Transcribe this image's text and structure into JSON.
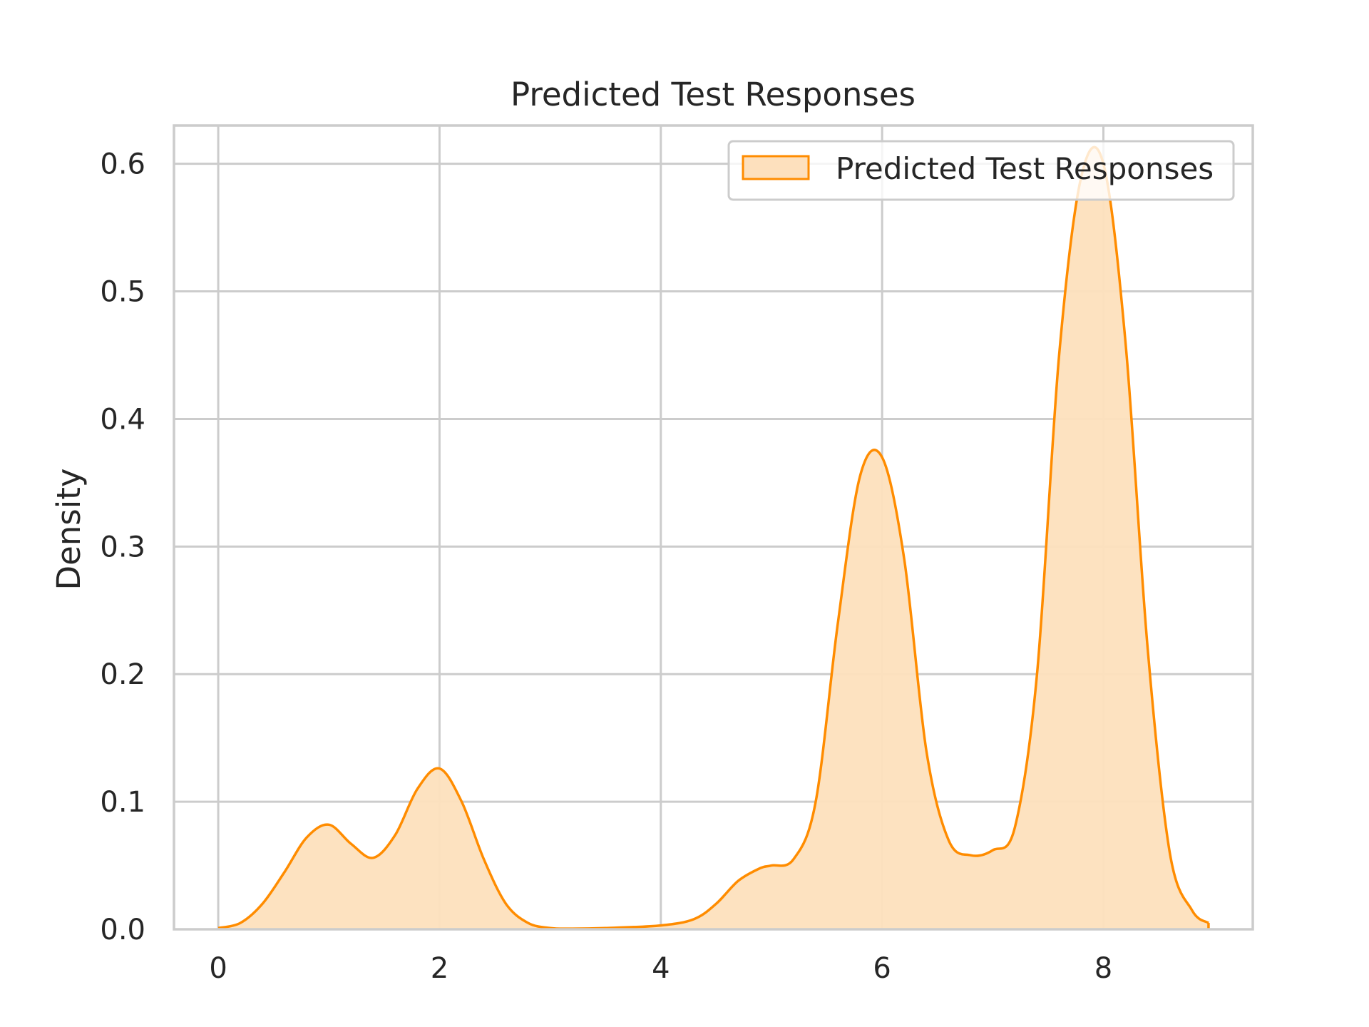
{
  "chart_data": {
    "type": "area",
    "title": "Predicted Test Responses",
    "xlabel": "",
    "ylabel": "Density",
    "xlim": [
      -0.4,
      9.35
    ],
    "ylim": [
      0,
      0.63
    ],
    "x_ticks": [
      "0",
      "2",
      "4",
      "6",
      "8"
    ],
    "y_ticks": [
      "0.0",
      "0.1",
      "0.2",
      "0.3",
      "0.4",
      "0.5",
      "0.6"
    ],
    "x_tick_values": [
      0,
      2,
      4,
      6,
      8
    ],
    "y_tick_values": [
      0,
      0.1,
      0.2,
      0.3,
      0.4,
      0.5,
      0.6
    ],
    "grid": true,
    "legend_position": "top-right",
    "colors": {
      "line": "#ff8c00",
      "fill": "#fde0bd",
      "grid": "#cccccc",
      "spine": "#cccccc",
      "text": "#262626"
    },
    "series": [
      {
        "name": "Predicted Test Responses",
        "x": [
          0.0,
          0.2,
          0.4,
          0.6,
          0.8,
          1.0,
          1.2,
          1.4,
          1.6,
          1.8,
          2.0,
          2.2,
          2.4,
          2.6,
          2.8,
          3.0,
          3.2,
          3.5,
          4.0,
          4.3,
          4.5,
          4.7,
          4.9,
          5.0,
          5.2,
          5.4,
          5.6,
          5.8,
          6.0,
          6.2,
          6.4,
          6.6,
          6.8,
          7.0,
          7.2,
          7.4,
          7.6,
          7.8,
          8.0,
          8.2,
          8.4,
          8.6,
          8.8,
          8.95
        ],
        "y": [
          0.001,
          0.005,
          0.02,
          0.045,
          0.072,
          0.082,
          0.067,
          0.056,
          0.074,
          0.11,
          0.126,
          0.1,
          0.055,
          0.02,
          0.005,
          0.001,
          0.0005,
          0.001,
          0.003,
          0.008,
          0.02,
          0.038,
          0.048,
          0.05,
          0.055,
          0.1,
          0.24,
          0.355,
          0.37,
          0.29,
          0.14,
          0.07,
          0.058,
          0.062,
          0.08,
          0.2,
          0.45,
          0.59,
          0.6,
          0.46,
          0.22,
          0.06,
          0.015,
          0.005
        ]
      }
    ]
  }
}
